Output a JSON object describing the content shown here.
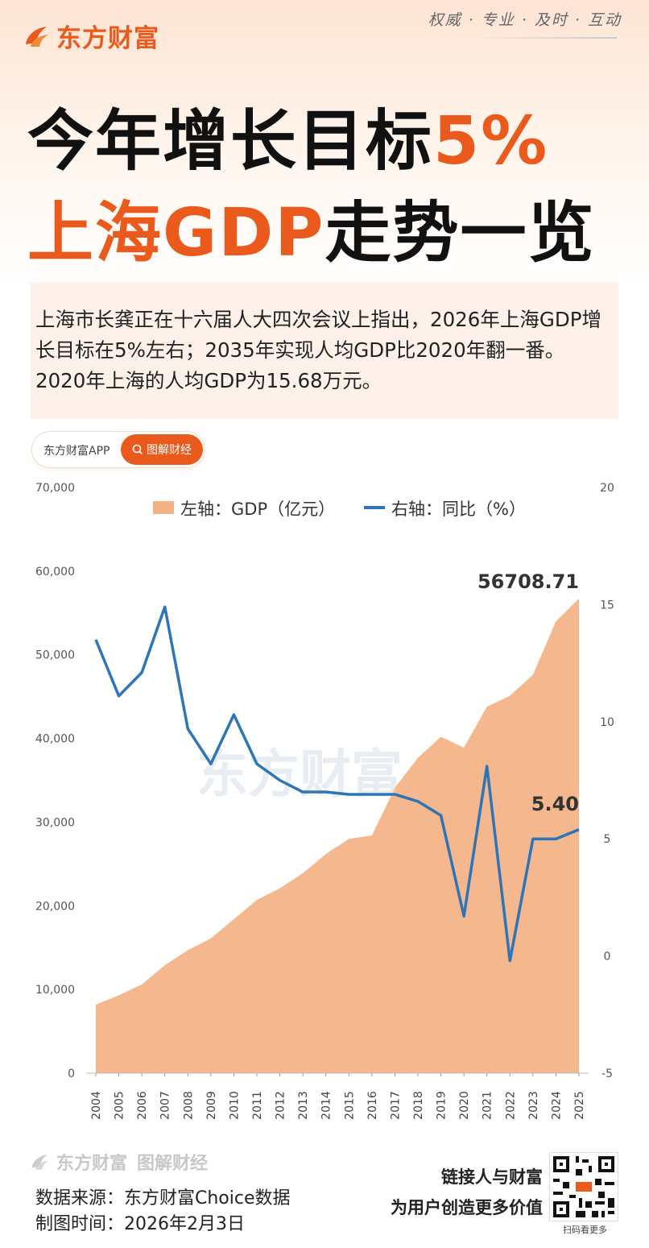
{
  "brand": {
    "name": "东方财富",
    "slogan": "权威 · 专业 · 及时 · 互动"
  },
  "title": {
    "line1_a": "今年增长目标",
    "line1_b": "5%",
    "line2_a": "上海GDP",
    "line2_b": "走势一览"
  },
  "intro": "上海市长龚正在十六届人大四次会议上指出，2026年上海GDP增长目标在5%左右；2035年实现人均GDP比2020年翻一番。2020年上海的人均GDP为15.68万元。",
  "pill": {
    "app": "东方财富APP",
    "button": "图解财经"
  },
  "chart_data": {
    "type": "area+line",
    "categories": [
      "2004",
      "2005",
      "2006",
      "2007",
      "2008",
      "2009",
      "2010",
      "2011",
      "2012",
      "2013",
      "2014",
      "2015",
      "2016",
      "2017",
      "2018",
      "2019",
      "2020",
      "2021",
      "2022",
      "2023",
      "2024",
      "2025"
    ],
    "series": [
      {
        "name": "左轴：GDP（亿元）",
        "axis": "left",
        "type": "area",
        "values": [
          8200,
          9300,
          10600,
          12900,
          14700,
          16100,
          18400,
          20700,
          22100,
          23900,
          26200,
          28000,
          28400,
          34100,
          37700,
          40200,
          38900,
          43800,
          45100,
          47600,
          54000,
          56708.71
        ]
      },
      {
        "name": "右轴：同比（%）",
        "axis": "right",
        "type": "line",
        "values": [
          13.5,
          11.1,
          12.1,
          14.9,
          9.7,
          8.2,
          10.3,
          8.2,
          7.5,
          7.0,
          7.0,
          6.9,
          6.9,
          6.9,
          6.6,
          6.0,
          1.7,
          8.1,
          -0.2,
          5.0,
          5.0,
          5.4
        ]
      }
    ],
    "y_left": {
      "min": 0,
      "max": 70000,
      "ticks": [
        "0",
        "10,000",
        "20,000",
        "30,000",
        "40,000",
        "50,000",
        "60,000",
        "70,000"
      ]
    },
    "y_right": {
      "min": -5,
      "max": 20,
      "ticks": [
        "-5",
        "0",
        "5",
        "10",
        "15",
        "20"
      ]
    },
    "annotations": [
      "56708.71",
      "5.40"
    ],
    "watermark": "东方财富",
    "legend": "top",
    "colors": {
      "area": "#f4b183",
      "line": "#2e75b6"
    }
  },
  "footer": {
    "logo": "东方财富",
    "logo_sub": "图解财经",
    "source": "数据来源：东方财富Choice数据",
    "date": "制图时间：2026年2月3日",
    "tag1": "链接人与财富",
    "tag2": "为用户创造更多价值",
    "qr_caption": "扫码看更多"
  }
}
